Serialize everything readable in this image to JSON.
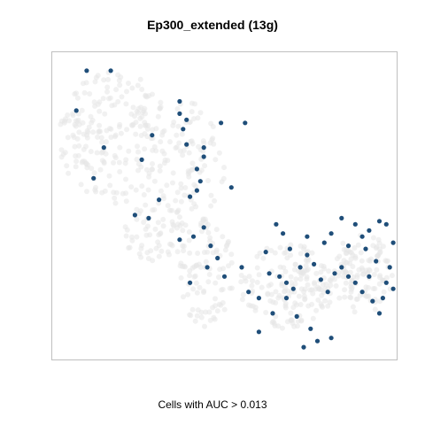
{
  "chart_data": {
    "type": "scatter",
    "title": "Ep300_extended (13g)",
    "subtitle": "Cells with AUC > 0.013",
    "xlabel": "",
    "ylabel": "",
    "xlim": [
      0,
      100
    ],
    "ylim": [
      0,
      100
    ],
    "grid": false,
    "axes_ticks": false,
    "colors": {
      "background_cells": "#e6e6e6",
      "highlighted_cells": "#1f4e79",
      "frame": "#bfbfbf"
    },
    "series": [
      {
        "points": [
          [
            10,
            94
          ],
          [
            17,
            94
          ],
          [
            7,
            81
          ],
          [
            15,
            69
          ],
          [
            26,
            65
          ],
          [
            29,
            73
          ],
          [
            28,
            46
          ],
          [
            31,
            52
          ],
          [
            24,
            47
          ],
          [
            12,
            59
          ],
          [
            37,
            84
          ],
          [
            37,
            80
          ],
          [
            39,
            78
          ],
          [
            38,
            75
          ],
          [
            39,
            70
          ],
          [
            44,
            69
          ],
          [
            42,
            62
          ],
          [
            43,
            58
          ],
          [
            42,
            55
          ],
          [
            44,
            66
          ],
          [
            49,
            77
          ],
          [
            56,
            77
          ],
          [
            52,
            56
          ],
          [
            40,
            53
          ],
          [
            37,
            39
          ],
          [
            41,
            40
          ],
          [
            40,
            25
          ],
          [
            44,
            43
          ],
          [
            46,
            37
          ],
          [
            48,
            33
          ],
          [
            45,
            30
          ],
          [
            50,
            27
          ],
          [
            55,
            30
          ],
          [
            57,
            22
          ],
          [
            60,
            20
          ],
          [
            63,
            28
          ],
          [
            66,
            27
          ],
          [
            68,
            25
          ],
          [
            70,
            23
          ],
          [
            72,
            30
          ],
          [
            74,
            34
          ],
          [
            76,
            31
          ],
          [
            78,
            26
          ],
          [
            80,
            22
          ],
          [
            82,
            28
          ],
          [
            84,
            30
          ],
          [
            86,
            27
          ],
          [
            88,
            25
          ],
          [
            90,
            22
          ],
          [
            92,
            27
          ],
          [
            94,
            32
          ],
          [
            93,
            19
          ],
          [
            95,
            15
          ],
          [
            97,
            25
          ],
          [
            98,
            30
          ],
          [
            96,
            20
          ],
          [
            99,
            23
          ],
          [
            86,
            37
          ],
          [
            90,
            40
          ],
          [
            92,
            42
          ],
          [
            95,
            45
          ],
          [
            97,
            44
          ],
          [
            99,
            38
          ],
          [
            71,
            14
          ],
          [
            64,
            15
          ],
          [
            60,
            9
          ],
          [
            75,
            10
          ],
          [
            77,
            6
          ],
          [
            81,
            7
          ],
          [
            73,
            4
          ],
          [
            68,
            20
          ],
          [
            62,
            35
          ],
          [
            74,
            40
          ],
          [
            81,
            41
          ],
          [
            84,
            46
          ],
          [
            88,
            44
          ],
          [
            79,
            38
          ],
          [
            91,
            36
          ],
          [
            69,
            36
          ],
          [
            67,
            41
          ],
          [
            65,
            44
          ]
        ]
      }
    ]
  }
}
